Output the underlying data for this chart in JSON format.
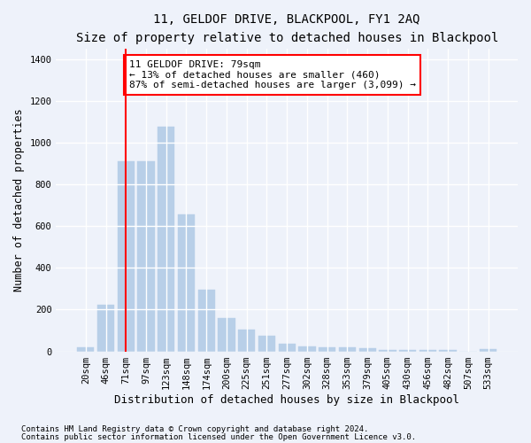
{
  "title": "11, GELDOF DRIVE, BLACKPOOL, FY1 2AQ",
  "subtitle": "Size of property relative to detached houses in Blackpool",
  "xlabel": "Distribution of detached houses by size in Blackpool",
  "ylabel": "Number of detached properties",
  "categories": [
    "20sqm",
    "46sqm",
    "71sqm",
    "97sqm",
    "123sqm",
    "148sqm",
    "174sqm",
    "200sqm",
    "225sqm",
    "251sqm",
    "277sqm",
    "302sqm",
    "328sqm",
    "353sqm",
    "379sqm",
    "405sqm",
    "430sqm",
    "456sqm",
    "482sqm",
    "507sqm",
    "533sqm"
  ],
  "values": [
    18,
    225,
    910,
    910,
    1075,
    655,
    295,
    160,
    105,
    75,
    38,
    25,
    20,
    18,
    15,
    5,
    5,
    5,
    5,
    0,
    10
  ],
  "bar_color": "#b8cfe8",
  "bar_edge_color": "#b8cfe8",
  "vline_x_index": 2,
  "vline_color": "red",
  "annotation_text": "11 GELDOF DRIVE: 79sqm\n← 13% of detached houses are smaller (460)\n87% of semi-detached houses are larger (3,099) →",
  "annotation_box_color": "white",
  "annotation_box_edge_color": "red",
  "ylim": [
    0,
    1450
  ],
  "yticks": [
    0,
    200,
    400,
    600,
    800,
    1000,
    1200,
    1400
  ],
  "footnote1": "Contains HM Land Registry data © Crown copyright and database right 2024.",
  "footnote2": "Contains public sector information licensed under the Open Government Licence v3.0.",
  "bg_color": "#eef2fa",
  "plot_bg_color": "#eef2fa",
  "grid_color": "#ffffff",
  "title_fontsize": 10,
  "subtitle_fontsize": 9.5,
  "xlabel_fontsize": 9,
  "ylabel_fontsize": 8.5,
  "tick_fontsize": 7.5,
  "annotation_fontsize": 8,
  "footnote_fontsize": 6.5
}
